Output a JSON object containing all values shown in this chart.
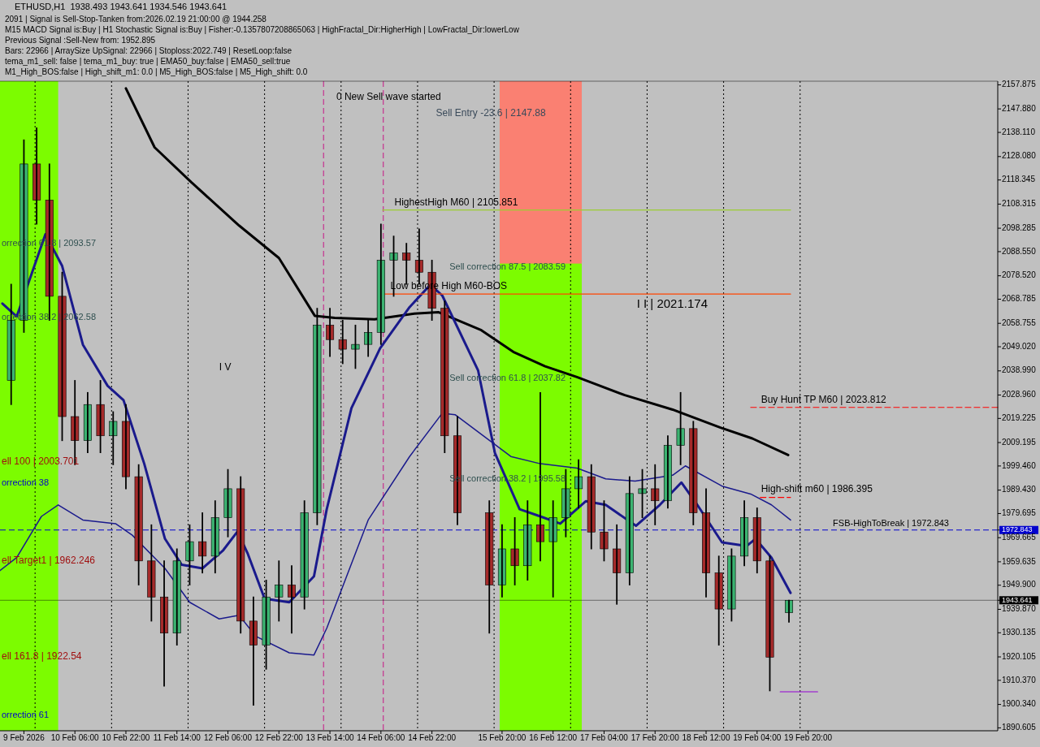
{
  "chart_data": {
    "type": "candlestick",
    "title": "ETHUSD,H1  1938.493 1943.641 1934.546 1943.641",
    "x": [
      "2026-02-09T10:00",
      "2026-02-09T14:00",
      "2026-02-09T18:00",
      "2026-02-09T22:00",
      "2026-02-10T02:00",
      "2026-02-10T06:00",
      "2026-02-10T10:00",
      "2026-02-10T14:00",
      "2026-02-10T18:00",
      "2026-02-10T22:00",
      "2026-02-11T02:00",
      "2026-02-11T06:00",
      "2026-02-11T10:00",
      "2026-02-11T14:00",
      "2026-02-11T18:00",
      "2026-02-11T22:00",
      "2026-02-12T02:00",
      "2026-02-12T06:00",
      "2026-02-12T10:00",
      "2026-02-12T14:00",
      "2026-02-12T18:00",
      "2026-02-12T22:00",
      "2026-02-13T02:00",
      "2026-02-13T06:00",
      "2026-02-13T10:00",
      "2026-02-13T14:00",
      "2026-02-13T18:00",
      "2026-02-13T22:00",
      "2026-02-14T02:00",
      "2026-02-14T06:00",
      "2026-02-14T10:00",
      "2026-02-14T14:00",
      "2026-02-14T18:00",
      "2026-02-14T22:00",
      "2026-02-15T02:00",
      "2026-02-15T06:00",
      "2026-02-15T16:00",
      "2026-02-15T20:00",
      "2026-02-16T00:00",
      "2026-02-16T04:00",
      "2026-02-16T08:00",
      "2026-02-16T12:00",
      "2026-02-16T16:00",
      "2026-02-16T20:00",
      "2026-02-17T00:00",
      "2026-02-17T04:00",
      "2026-02-17T08:00",
      "2026-02-17T12:00",
      "2026-02-17T16:00",
      "2026-02-17T20:00",
      "2026-02-18T00:00",
      "2026-02-18T04:00",
      "2026-02-18T08:00",
      "2026-02-18T12:00",
      "2026-02-18T16:00",
      "2026-02-18T20:00",
      "2026-02-19T00:00",
      "2026-02-19T04:00",
      "2026-02-19T08:00",
      "2026-02-19T14:00"
    ],
    "ohlc": [
      [
        2035,
        2075,
        2025,
        2060
      ],
      [
        2060,
        2135,
        2055,
        2125
      ],
      [
        2125,
        2140,
        2100,
        2110
      ],
      [
        2110,
        2125,
        2060,
        2070
      ],
      [
        2070,
        2080,
        2010,
        2020
      ],
      [
        2020,
        2035,
        2000,
        2010
      ],
      [
        2010,
        2030,
        2005,
        2025
      ],
      [
        2025,
        2035,
        2005,
        2012
      ],
      [
        2012,
        2022,
        2000,
        2018
      ],
      [
        2018,
        2025,
        1990,
        1995
      ],
      [
        1995,
        2000,
        1950,
        1960
      ],
      [
        1960,
        1975,
        1935,
        1945
      ],
      [
        1945,
        1960,
        1908,
        1930
      ],
      [
        1930,
        1965,
        1925,
        1960
      ],
      [
        1960,
        1975,
        1950,
        1968
      ],
      [
        1968,
        1980,
        1955,
        1962
      ],
      [
        1962,
        1985,
        1955,
        1978
      ],
      [
        1978,
        1998,
        1970,
        1990
      ],
      [
        1990,
        1995,
        1930,
        1935
      ],
      [
        1935,
        1945,
        1900,
        1925
      ],
      [
        1925,
        1952,
        1915,
        1945
      ],
      [
        1945,
        1960,
        1935,
        1950
      ],
      [
        1950,
        1958,
        1930,
        1945
      ],
      [
        1945,
        1985,
        1940,
        1980
      ],
      [
        1980,
        2065,
        1975,
        2058
      ],
      [
        2058,
        2065,
        2045,
        2052
      ],
      [
        2052,
        2060,
        2042,
        2048
      ],
      [
        2048,
        2058,
        2040,
        2050
      ],
      [
        2050,
        2060,
        2045,
        2055
      ],
      [
        2055,
        2100,
        2050,
        2085
      ],
      [
        2085,
        2095,
        2070,
        2088
      ],
      [
        2088,
        2092,
        2075,
        2085
      ],
      [
        2085,
        2098,
        2075,
        2080
      ],
      [
        2080,
        2085,
        2060,
        2065
      ],
      [
        2065,
        2068,
        2005,
        2012
      ],
      [
        2012,
        2020,
        1975,
        1980
      ],
      [
        1980,
        1985,
        1930,
        1950
      ],
      [
        1950,
        1975,
        1945,
        1965
      ],
      [
        1965,
        1978,
        1950,
        1958
      ],
      [
        1958,
        1985,
        1952,
        1975
      ],
      [
        1975,
        2030,
        1960,
        1968
      ],
      [
        1968,
        1985,
        1945,
        1978
      ],
      [
        1978,
        1998,
        1970,
        1990
      ],
      [
        1990,
        2002,
        1982,
        1995
      ],
      [
        1995,
        2000,
        1965,
        1972
      ],
      [
        1972,
        1985,
        1960,
        1965
      ],
      [
        1965,
        1975,
        1942,
        1955
      ],
      [
        1955,
        1995,
        1950,
        1988
      ],
      [
        1988,
        1998,
        1978,
        1990
      ],
      [
        1990,
        2000,
        1975,
        1985
      ],
      [
        1985,
        2012,
        1982,
        2008
      ],
      [
        2008,
        2030,
        2000,
        2015
      ],
      [
        2015,
        2018,
        1975,
        1980
      ],
      [
        1980,
        1990,
        1945,
        1955
      ],
      [
        1955,
        1962,
        1925,
        1940
      ],
      [
        1940,
        1965,
        1935,
        1962
      ],
      [
        1962,
        1985,
        1958,
        1978
      ],
      [
        1978,
        1982,
        1955,
        1960
      ],
      [
        1960,
        1962,
        1906,
        1920
      ],
      [
        1938.493,
        1943.641,
        1934.546,
        1943.641
      ]
    ],
    "series": [
      {
        "type": "line",
        "color": "#000000",
        "x": [
          "2026-02-10T22:00",
          "2026-02-11T07:00",
          "2026-02-11T18:30",
          "2026-02-12T09:30",
          "2026-02-12T22:00",
          "2026-02-13T09:15",
          "2026-02-13T15:30",
          "2026-02-14T04:00",
          "2026-02-14T16:30",
          "2026-02-15T00:00",
          "2026-02-15T13:30",
          "2026-02-15T23:30",
          "2026-02-16T09:30",
          "2026-02-16T19:30",
          "2026-02-17T10:30",
          "2026-02-18T01:30",
          "2026-02-18T16:30",
          "2026-02-19T02:30",
          "2026-02-19T13:45"
        ],
        "values": [
          2156.4,
          2131.9,
          2117.4,
          2099.4,
          2085.9,
          2061.9,
          2061.0,
          2060.4,
          2062.8,
          2063.4,
          2055.9,
          2046.9,
          2040.9,
          2036.4,
          2028.9,
          2022.9,
          2015.4,
          2010.9,
          2004.0
        ]
      },
      {
        "type": "line",
        "color": "#1a1a8c",
        "x": [
          "2026-02-09T07:15",
          "2026-02-09T11:45",
          "2026-02-09T20:45",
          "2026-02-10T02:00",
          "2026-02-10T08:30",
          "2026-02-10T16:15",
          "2026-02-10T21:15",
          "2026-02-11T03:45",
          "2026-02-11T10:15",
          "2026-02-11T15:30",
          "2026-02-11T22:00",
          "2026-02-12T04:30",
          "2026-02-12T09:00",
          "2026-02-12T12:15",
          "2026-02-12T17:30",
          "2026-02-13T01:15",
          "2026-02-13T09:00",
          "2026-02-13T13:00",
          "2026-02-13T20:45",
          "2026-02-14T05:45",
          "2026-02-14T15:00",
          "2026-02-14T21:30",
          "2026-02-15T01:15",
          "2026-02-15T12:30",
          "2026-02-15T17:45",
          "2026-02-16T01:30",
          "2026-02-16T08:00",
          "2026-02-16T14:15",
          "2026-02-16T22:15",
          "2026-02-17T04:30",
          "2026-02-17T14:00",
          "2026-02-17T21:30",
          "2026-02-18T04:15",
          "2026-02-18T09:15",
          "2026-02-18T17:00",
          "2026-02-19T00:45",
          "2026-02-19T03:30",
          "2026-02-19T08:30",
          "2026-02-19T14:30"
        ],
        "values": [
          2067.0,
          2061.6,
          2095.8,
          2082.6,
          2049.9,
          2032.8,
          2026.8,
          2000.4,
          1969.2,
          1958.4,
          1956.9,
          1964.4,
          1972.2,
          1962.9,
          1944.3,
          1942.8,
          1953.6,
          1981.5,
          2023.5,
          2048.4,
          2065.5,
          2074.8,
          2070.3,
          2039.1,
          2004.9,
          1981.5,
          1978.5,
          1975.5,
          1984.8,
          1983.3,
          1974.6,
          1983.3,
          1992.6,
          1983.3,
          1967.7,
          1966.2,
          1969.2,
          1961.4,
          1946.7
        ]
      },
      {
        "type": "line",
        "color": "#1a1a8c",
        "x": [
          "2026-02-09T06:30",
          "2026-02-09T11:45",
          "2026-02-09T19:30",
          "2026-02-10T00:45",
          "2026-02-10T08:30",
          "2026-02-10T18:45",
          "2026-02-11T00:00",
          "2026-02-11T10:15",
          "2026-02-11T18:00",
          "2026-02-12T03:15",
          "2026-02-12T09:30",
          "2026-02-12T14:45",
          "2026-02-13T01:15",
          "2026-02-13T09:00",
          "2026-02-13T13:00",
          "2026-02-14T02:00",
          "2026-02-14T15:00",
          "2026-02-15T01:15",
          "2026-02-15T05:15",
          "2026-02-15T22:45",
          "2026-02-16T08:00",
          "2026-02-16T19:30",
          "2026-02-17T04:30",
          "2026-02-17T13:45",
          "2026-02-18T01:30",
          "2026-02-18T05:30",
          "2026-02-18T17:00",
          "2026-02-19T02:00",
          "2026-02-19T08:30",
          "2026-02-19T14:30"
        ],
        "values": [
          1956.0,
          1961.4,
          1978.5,
          1983.3,
          1977.0,
          1975.5,
          1970.7,
          1956.9,
          1942.8,
          1935.9,
          1937.4,
          1928.7,
          1921.8,
          1920.9,
          1932.0,
          1977.0,
          2003.4,
          2021.4,
          2020.8,
          2003.4,
          2000.4,
          1998.6,
          1994.1,
          1993.2,
          1995.6,
          1999.5,
          1991.1,
          1987.8,
          1983.3,
          1977.0
        ]
      },
      {
        "type": "line",
        "color": "#9acd32",
        "x": [
          "2026-02-14T06:30",
          "2026-02-19T14:30"
        ],
        "values": [
          2105.851,
          2105.851
        ]
      },
      {
        "type": "line",
        "color": "#ff4500",
        "x": [
          "2026-02-14T06:30",
          "2026-02-19T14:30"
        ],
        "values": [
          2070.9,
          2070.9
        ]
      },
      {
        "type": "line",
        "color": "#ff0000",
        "line_style": "dashed",
        "x": [
          "2026-02-19T02:00",
          "2026-02-22T07:30"
        ],
        "values": [
          2023.812,
          2023.812
        ]
      },
      {
        "type": "line",
        "color": "#ff0000",
        "line_style": "dashed",
        "x": [
          "2026-02-19T05:00",
          "2026-02-19T14:30"
        ],
        "values": [
          1986.395,
          1986.395
        ]
      },
      {
        "type": "line",
        "color": "#9400d3",
        "x": [
          "2026-02-19T11:15",
          "2026-02-19T23:00"
        ],
        "values": [
          1905.6,
          1905.6
        ]
      }
    ],
    "xlim": [
      "2026-02-09T06:30",
      "2026-02-22T07:30"
    ],
    "xticks": [
      {
        "value": "2026-02-09T14:00",
        "label": "9 Feb 2026"
      },
      {
        "value": "2026-02-10T06:00",
        "label": "10 Feb 06:00"
      },
      {
        "value": "2026-02-10T22:00",
        "label": "10 Feb 22:00"
      },
      {
        "value": "2026-02-11T14:00",
        "label": "11 Feb 14:00"
      },
      {
        "value": "2026-02-12T06:00",
        "label": "12 Feb 06:00"
      },
      {
        "value": "2026-02-12T22:00",
        "label": "12 Feb 22:00"
      },
      {
        "value": "2026-02-13T14:00",
        "label": "13 Feb 14:00"
      },
      {
        "value": "2026-02-14T06:00",
        "label": "14 Feb 06:00"
      },
      {
        "value": "2026-02-14T22:00",
        "label": "14 Feb 22:00"
      },
      {
        "value": "2026-02-15T20:00",
        "label": "15 Feb 20:00"
      },
      {
        "value": "2026-02-16T12:00",
        "label": "16 Feb 12:00"
      },
      {
        "value": "2026-02-17T04:00",
        "label": "17 Feb 04:00"
      },
      {
        "value": "2026-02-17T20:00",
        "label": "17 Feb 20:00"
      },
      {
        "value": "2026-02-18T12:00",
        "label": "18 Feb 12:00"
      },
      {
        "value": "2026-02-19T04:00",
        "label": "19 Feb 04:00"
      },
      {
        "value": "2026-02-19T20:00",
        "label": "19 Feb 20:00"
      }
    ],
    "ylim": [
      1889.4,
      2159.4
    ],
    "yticks": [
      2157.875,
      {
        "value": 2147.88,
        "label": "2147.880"
      },
      {
        "value": 2138.11,
        "label": "2138.110"
      },
      {
        "value": 2128.08,
        "label": "2128.080"
      },
      2118.345,
      2108.315,
      2098.285,
      {
        "value": 2088.55,
        "label": "2088.550"
      },
      {
        "value": 2078.52,
        "label": "2078.520"
      },
      2068.785,
      2058.755,
      {
        "value": 2049.02,
        "label": "2049.020"
      },
      {
        "value": 2038.99,
        "label": "2038.990"
      },
      {
        "value": 2028.96,
        "label": "2028.960"
      },
      2019.225,
      2009.195,
      {
        "value": 1999.46,
        "label": "1999.460"
      },
      {
        "value": 1989.43,
        "label": "1989.430"
      },
      1979.695,
      1972.843,
      1969.665,
      1959.635,
      {
        "value": 1949.9,
        "label": "1949.900"
      },
      1943.641,
      {
        "value": 1939.87,
        "label": "1939.870"
      },
      1930.135,
      1920.105,
      {
        "value": 1910.37,
        "label": "1910.370"
      },
      {
        "value": 1900.34,
        "label": "1900.340"
      },
      1890.605
    ],
    "bands": [
      {
        "axis": "x",
        "from": "2026-02-09T06:30",
        "to": "2026-02-10T00:45",
        "color": "#7cfc00"
      },
      {
        "axis": "x",
        "from": "2026-02-15T19:15",
        "to": "2026-02-16T21:00",
        "color": "#7cfc00"
      },
      {
        "axis": "y",
        "from": 2083.59,
        "to": 2159.4,
        "color": "#fa8072"
      }
    ],
    "ref_lines": [
      {
        "axis": "x",
        "value": "2026-02-09T17:30",
        "color": "#000000",
        "line_style": "dotted"
      },
      {
        "axis": "x",
        "value": "2026-02-10T17:30",
        "color": "#000000",
        "line_style": "dotted"
      },
      {
        "axis": "x",
        "value": "2026-02-11T17:30",
        "color": "#000000",
        "line_style": "dotted"
      },
      {
        "axis": "x",
        "value": "2026-02-12T17:30",
        "color": "#000000",
        "line_style": "dotted"
      },
      {
        "axis": "x",
        "value": "2026-02-13T17:30",
        "color": "#000000",
        "line_style": "dotted"
      },
      {
        "axis": "x",
        "value": "2026-02-14T17:30",
        "color": "#000000",
        "line_style": "dotted"
      },
      {
        "axis": "x",
        "value": "2026-02-15T17:30",
        "color": "#000000",
        "line_style": "dotted"
      },
      {
        "axis": "x",
        "value": "2026-02-16T17:30",
        "color": "#000000",
        "line_style": "dotted"
      },
      {
        "axis": "x",
        "value": "2026-02-17T17:30",
        "color": "#000000",
        "line_style": "dotted"
      },
      {
        "axis": "x",
        "value": "2026-02-18T17:30",
        "color": "#000000",
        "line_style": "dotted"
      },
      {
        "axis": "x",
        "value": "2026-02-19T17:30",
        "color": "#000000",
        "line_style": "dotted"
      },
      {
        "axis": "x",
        "value": "2026-02-13T12:00",
        "color": "#c71585",
        "line_style": "dashed"
      },
      {
        "axis": "x",
        "value": "2026-02-14T06:45",
        "color": "#c71585",
        "line_style": "dashed"
      },
      {
        "axis": "y",
        "value": 1972.843,
        "label": "FSB-HighToBreak | 1972.843",
        "color": "#0000cd",
        "line_style": "dashed"
      },
      {
        "axis": "y",
        "value": 1943.641,
        "color": "#000000",
        "line_style": "solid"
      }
    ],
    "annotations": [
      "2091 | Signal is Sell-Stop-Tanken from:2026.02.19 21:00:00 @ 1944.258",
      "M15 MACD Signal is:Buy | H1 Stochastic Signal is:Buy | Fisher:-0.1357807208865063 | HighFractal_Dir:HigherHigh | LowFractal_Dir:lowerLow",
      "Previous Signal :Sell-New from: 1952.895",
      "Bars: 22966 | ArraySize UpSignal: 22966 | Stoploss:2022.749 | ResetLoop:false",
      "tema_m1_sell: false | tema_m1_buy: true | EMA50_buy:false | EMA50_sell:true",
      "M1_High_BOS:false | High_shift_m1: 0.0 | M5_High_BOS:false | M5_High_shift: 0.0",
      "0 New Sell wave started",
      "Sell Entry -23.6 | 2147.88",
      "HighestHigh    M60 | 2105.851",
      "Sell correction 87.5 | 2083.59",
      "Low before High    M60-BOS",
      "I I | 2021.174",
      "Sell correction 61.8 | 2037.82",
      "Sell correction 38.2 | 1995.58",
      "I V",
      "Buy Hunt TP M60 | 2023.812",
      "High-shift m60 | 1986.395",
      "orrection 61.8 | 2093.57",
      "orrection 38.2 | 2062.58",
      "ell 100 | 2003.701",
      "orrection 38",
      "ell Target1 | 1962.246",
      "ell 161.8 | 1922.54",
      "orrection 61"
    ]
  }
}
